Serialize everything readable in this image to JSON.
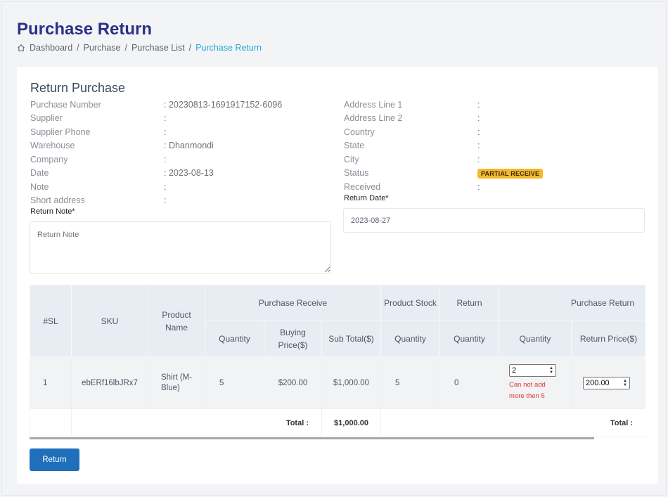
{
  "page": {
    "title": "Purchase Return",
    "breadcrumb": [
      "Dashboard",
      "Purchase",
      "Purchase List",
      "Purchase Return"
    ]
  },
  "card": {
    "title": "Return Purchase",
    "left_info": [
      {
        "label": "Purchase Number",
        "value": ": 20230813-1691917152-6096"
      },
      {
        "label": "Supplier",
        "value": ":"
      },
      {
        "label": "Supplier Phone",
        "value": ":"
      },
      {
        "label": "Warehouse",
        "value": ": Dhanmondi"
      },
      {
        "label": "Company",
        "value": ":"
      },
      {
        "label": "Date",
        "value": ": 2023-08-13"
      },
      {
        "label": "Note",
        "value": ":"
      },
      {
        "label": "Short address",
        "value": ":"
      }
    ],
    "right_info": [
      {
        "label": "Address Line 1",
        "value": ":"
      },
      {
        "label": "Address Line 2",
        "value": ":"
      },
      {
        "label": "Country",
        "value": ":"
      },
      {
        "label": "State",
        "value": ":"
      },
      {
        "label": "City",
        "value": ":"
      },
      {
        "label": "Status",
        "value": "PARTIAL RECEIVE"
      },
      {
        "label": "Received",
        "value": ":"
      }
    ],
    "return_note_label": "Return Note*",
    "return_note_placeholder": "Return Note",
    "return_date_label": "Return Date*",
    "return_date_value": "2023-08-27"
  },
  "table": {
    "headers": {
      "sl": "#SL",
      "sku": "SKU",
      "product_name": "Product Name",
      "purchase_receive": "Purchase Receive",
      "product_stock": "Product Stock",
      "return": "Return",
      "purchase_return": "Purchase Return",
      "quantity": "Quantity",
      "buying_price": "Buying Price($)",
      "sub_total": "Sub Total($)",
      "stock_quantity": "Quantity",
      "return_quantity": "Quantity",
      "pr_quantity": "Quantity",
      "return_price": "Return Price($)"
    },
    "row": {
      "sl": "1",
      "sku": "ebERf16lbJRx7",
      "product_name": "Shirt (M-Blue)",
      "quantity": "5",
      "buying_price": "$200.00",
      "sub_total": "$1,000.00",
      "stock_quantity": "5",
      "return_quantity": "0",
      "pr_quantity": "2",
      "error": "Can not add more then 5",
      "return_price": "200.00"
    },
    "total_label": "Total :",
    "total_value": "$1,000.00",
    "total_label_right": "Total :"
  },
  "actions": {
    "return_label": "Return"
  },
  "colors": {
    "title": "#2b2f86",
    "breadcrumb_active": "#2ea3dc",
    "badge": "#f5b82e",
    "button": "#1f6fbb",
    "error": "#e0342b"
  }
}
